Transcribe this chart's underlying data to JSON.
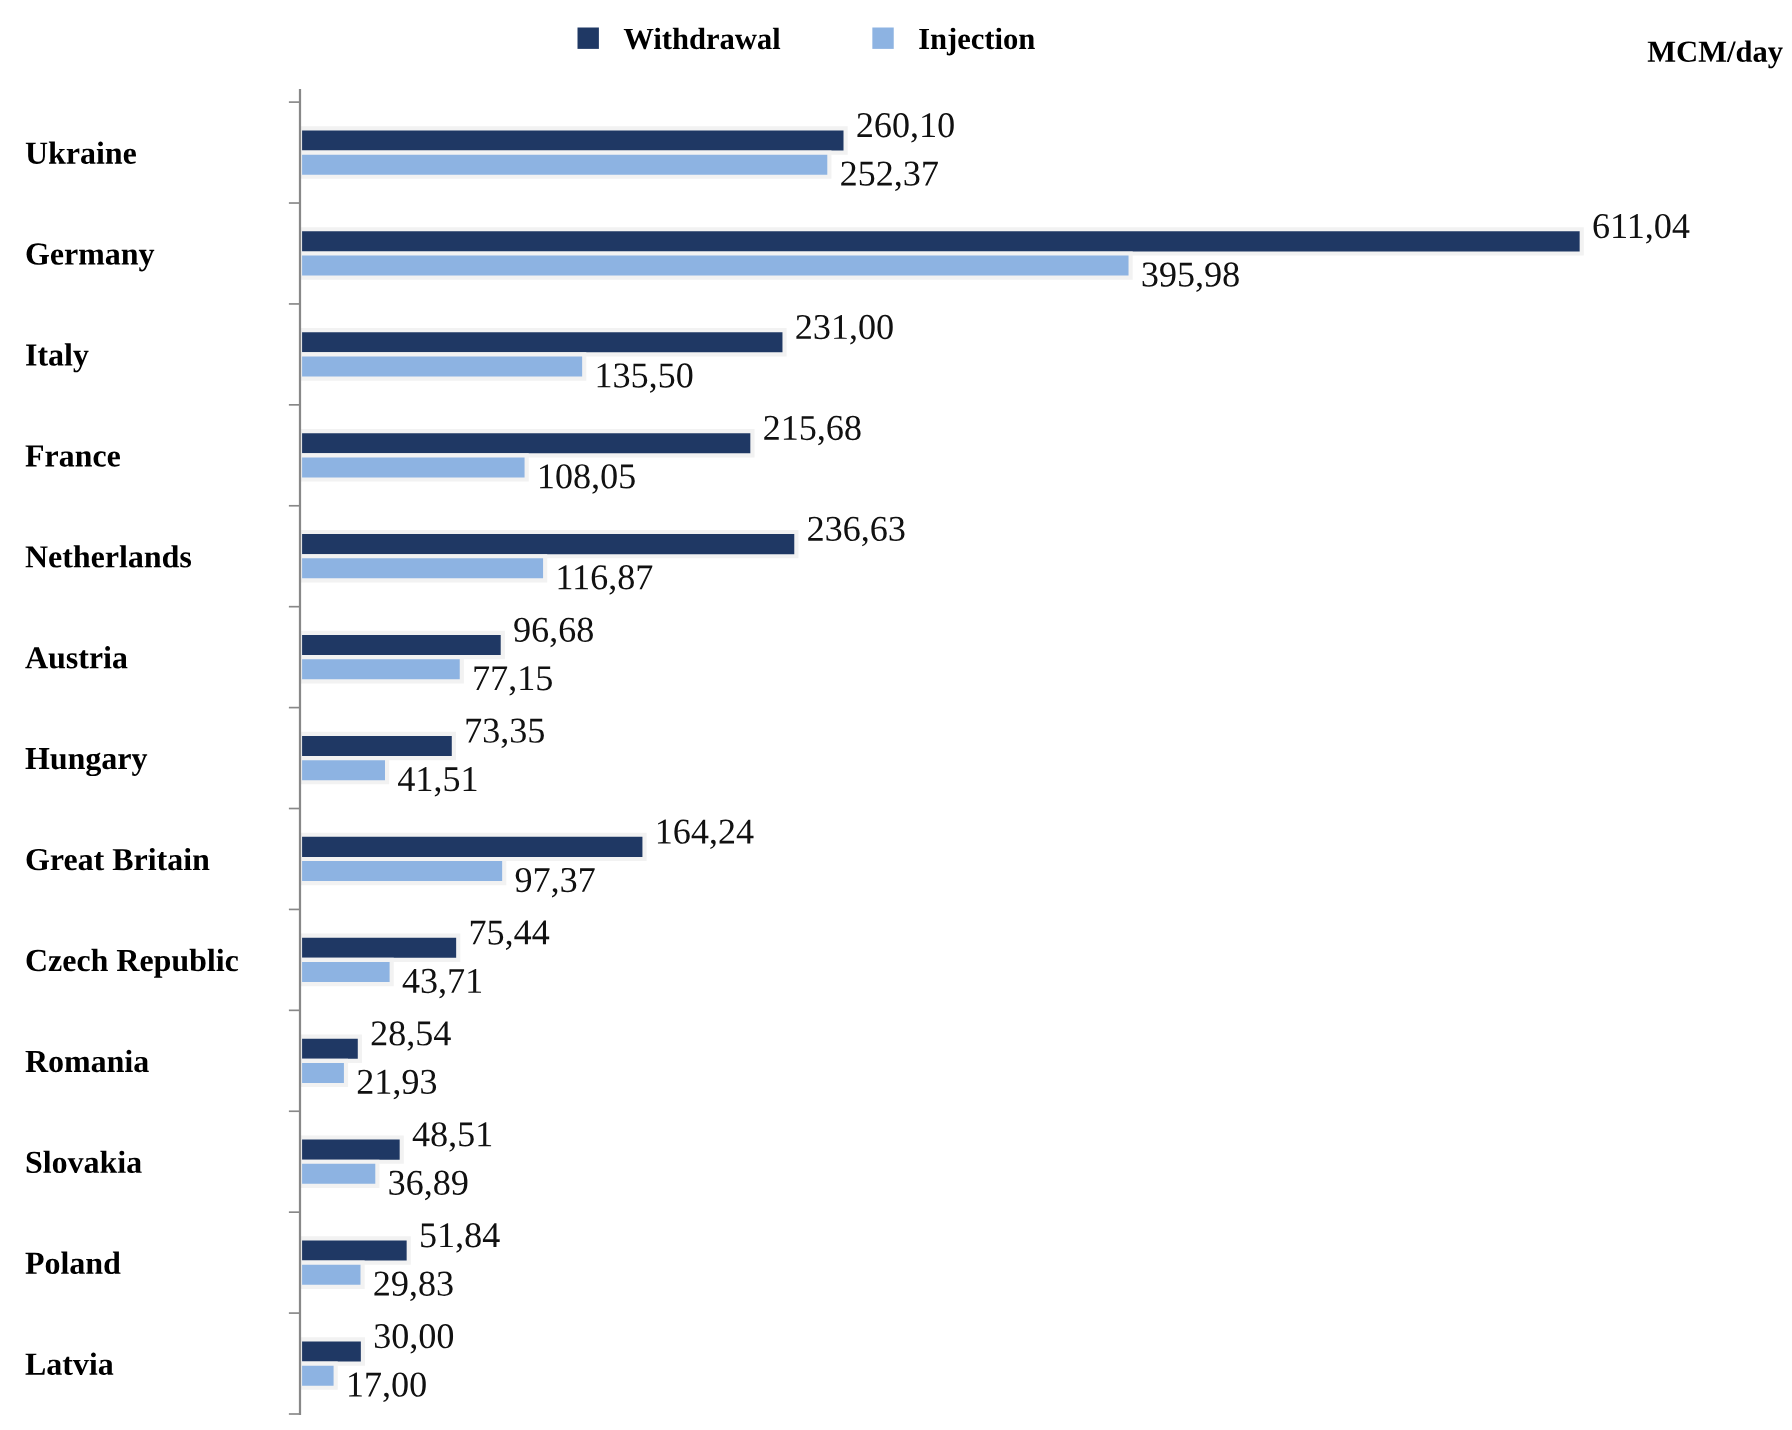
{
  "chart_data": {
    "type": "bar",
    "orientation": "horizontal",
    "legend": "top",
    "annotations": [
      "MCM/day"
    ],
    "categories": [
      "Ukraine",
      "Germany",
      "Italy",
      "France",
      "Netherlands",
      "Austria",
      "Hungary",
      "Great Britain",
      "Czech Republic",
      "Romania",
      "Slovakia",
      "Poland",
      "Latvia"
    ],
    "series": [
      {
        "name": "Withdrawal",
        "color": "#1f3864",
        "values": [
          260.1,
          611.04,
          231.0,
          215.68,
          236.63,
          96.68,
          73.35,
          164.24,
          75.44,
          28.54,
          48.51,
          51.84,
          30.0
        ],
        "value_labels": [
          "260,10",
          "611,04",
          "231,00",
          "215,68",
          "236,63",
          "96,68",
          "73,35",
          "164,24",
          "75,44",
          "28,54",
          "48,51",
          "51,84",
          "30,00"
        ]
      },
      {
        "name": "Injection",
        "color": "#8db3e2",
        "values": [
          252.37,
          395.98,
          135.5,
          108.05,
          116.87,
          77.15,
          41.51,
          97.37,
          43.71,
          21.93,
          36.89,
          29.83,
          17.0
        ],
        "value_labels": [
          "252,37",
          "395,98",
          "135,50",
          "108,05",
          "116,87",
          "77,15",
          "41,51",
          "97,37",
          "43,71",
          "21,93",
          "36,89",
          "29,83",
          "17,00"
        ]
      }
    ]
  }
}
